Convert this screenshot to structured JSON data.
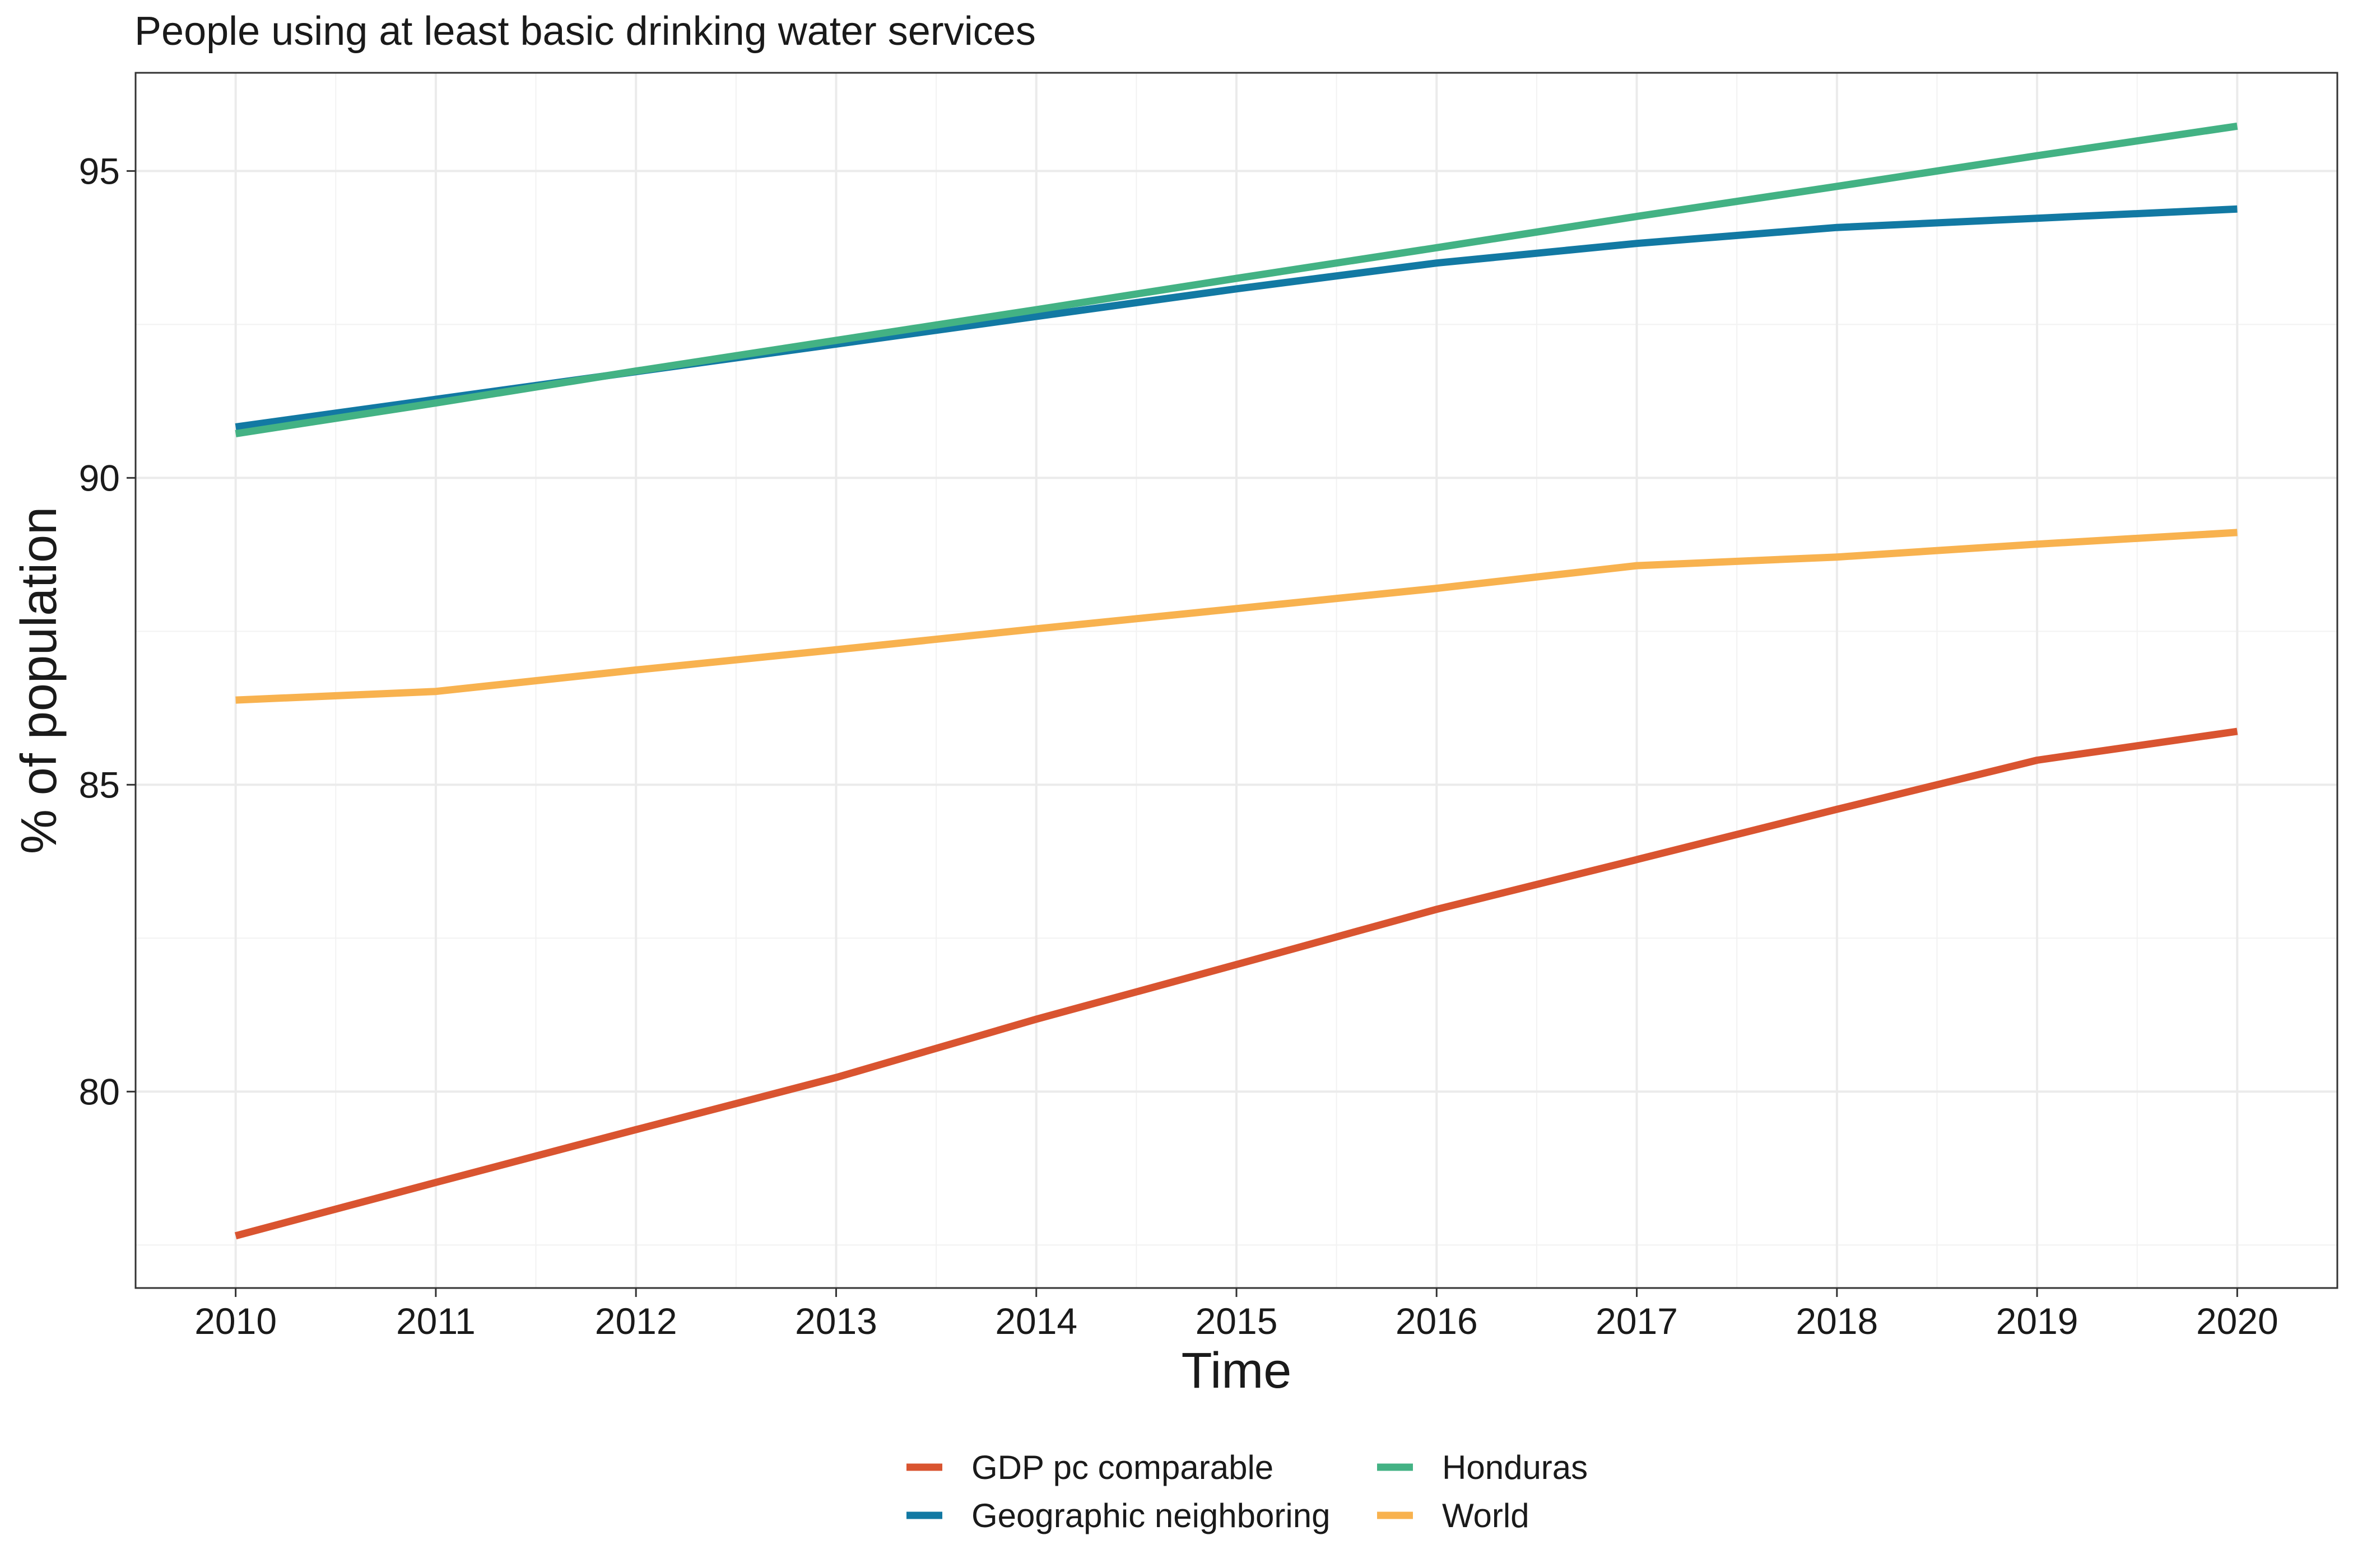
{
  "chart_data": {
    "type": "line",
    "title": "People using at least basic drinking water services",
    "xlabel": "Time",
    "ylabel": "% of population",
    "x": [
      2010,
      2011,
      2012,
      2013,
      2014,
      2015,
      2016,
      2017,
      2018,
      2019,
      2020
    ],
    "xlim": [
      2009.5,
      2020.5
    ],
    "ylim": [
      76.8,
      96.6
    ],
    "yticks": [
      80,
      85,
      90,
      95
    ],
    "grid": true,
    "legend_position": "bottom",
    "series": [
      {
        "name": "GDP pc comparable",
        "color": "#d95430",
        "values": [
          77.65,
          78.52,
          79.38,
          80.23,
          81.18,
          82.07,
          82.97,
          83.78,
          84.6,
          85.4,
          85.87
        ]
      },
      {
        "name": "Geographic neighboring",
        "color": "#1279a3",
        "values": [
          90.83,
          91.28,
          91.73,
          92.18,
          92.63,
          93.08,
          93.5,
          93.82,
          94.08,
          94.23,
          94.38
        ]
      },
      {
        "name": "Honduras",
        "color": "#43b284",
        "values": [
          90.72,
          91.22,
          91.74,
          92.24,
          92.74,
          93.25,
          93.75,
          94.26,
          94.75,
          95.25,
          95.73
        ]
      },
      {
        "name": "World",
        "color": "#f8b24f",
        "values": [
          86.38,
          86.52,
          86.87,
          87.2,
          87.54,
          87.87,
          88.2,
          88.57,
          88.71,
          88.92,
          89.11
        ]
      }
    ]
  }
}
